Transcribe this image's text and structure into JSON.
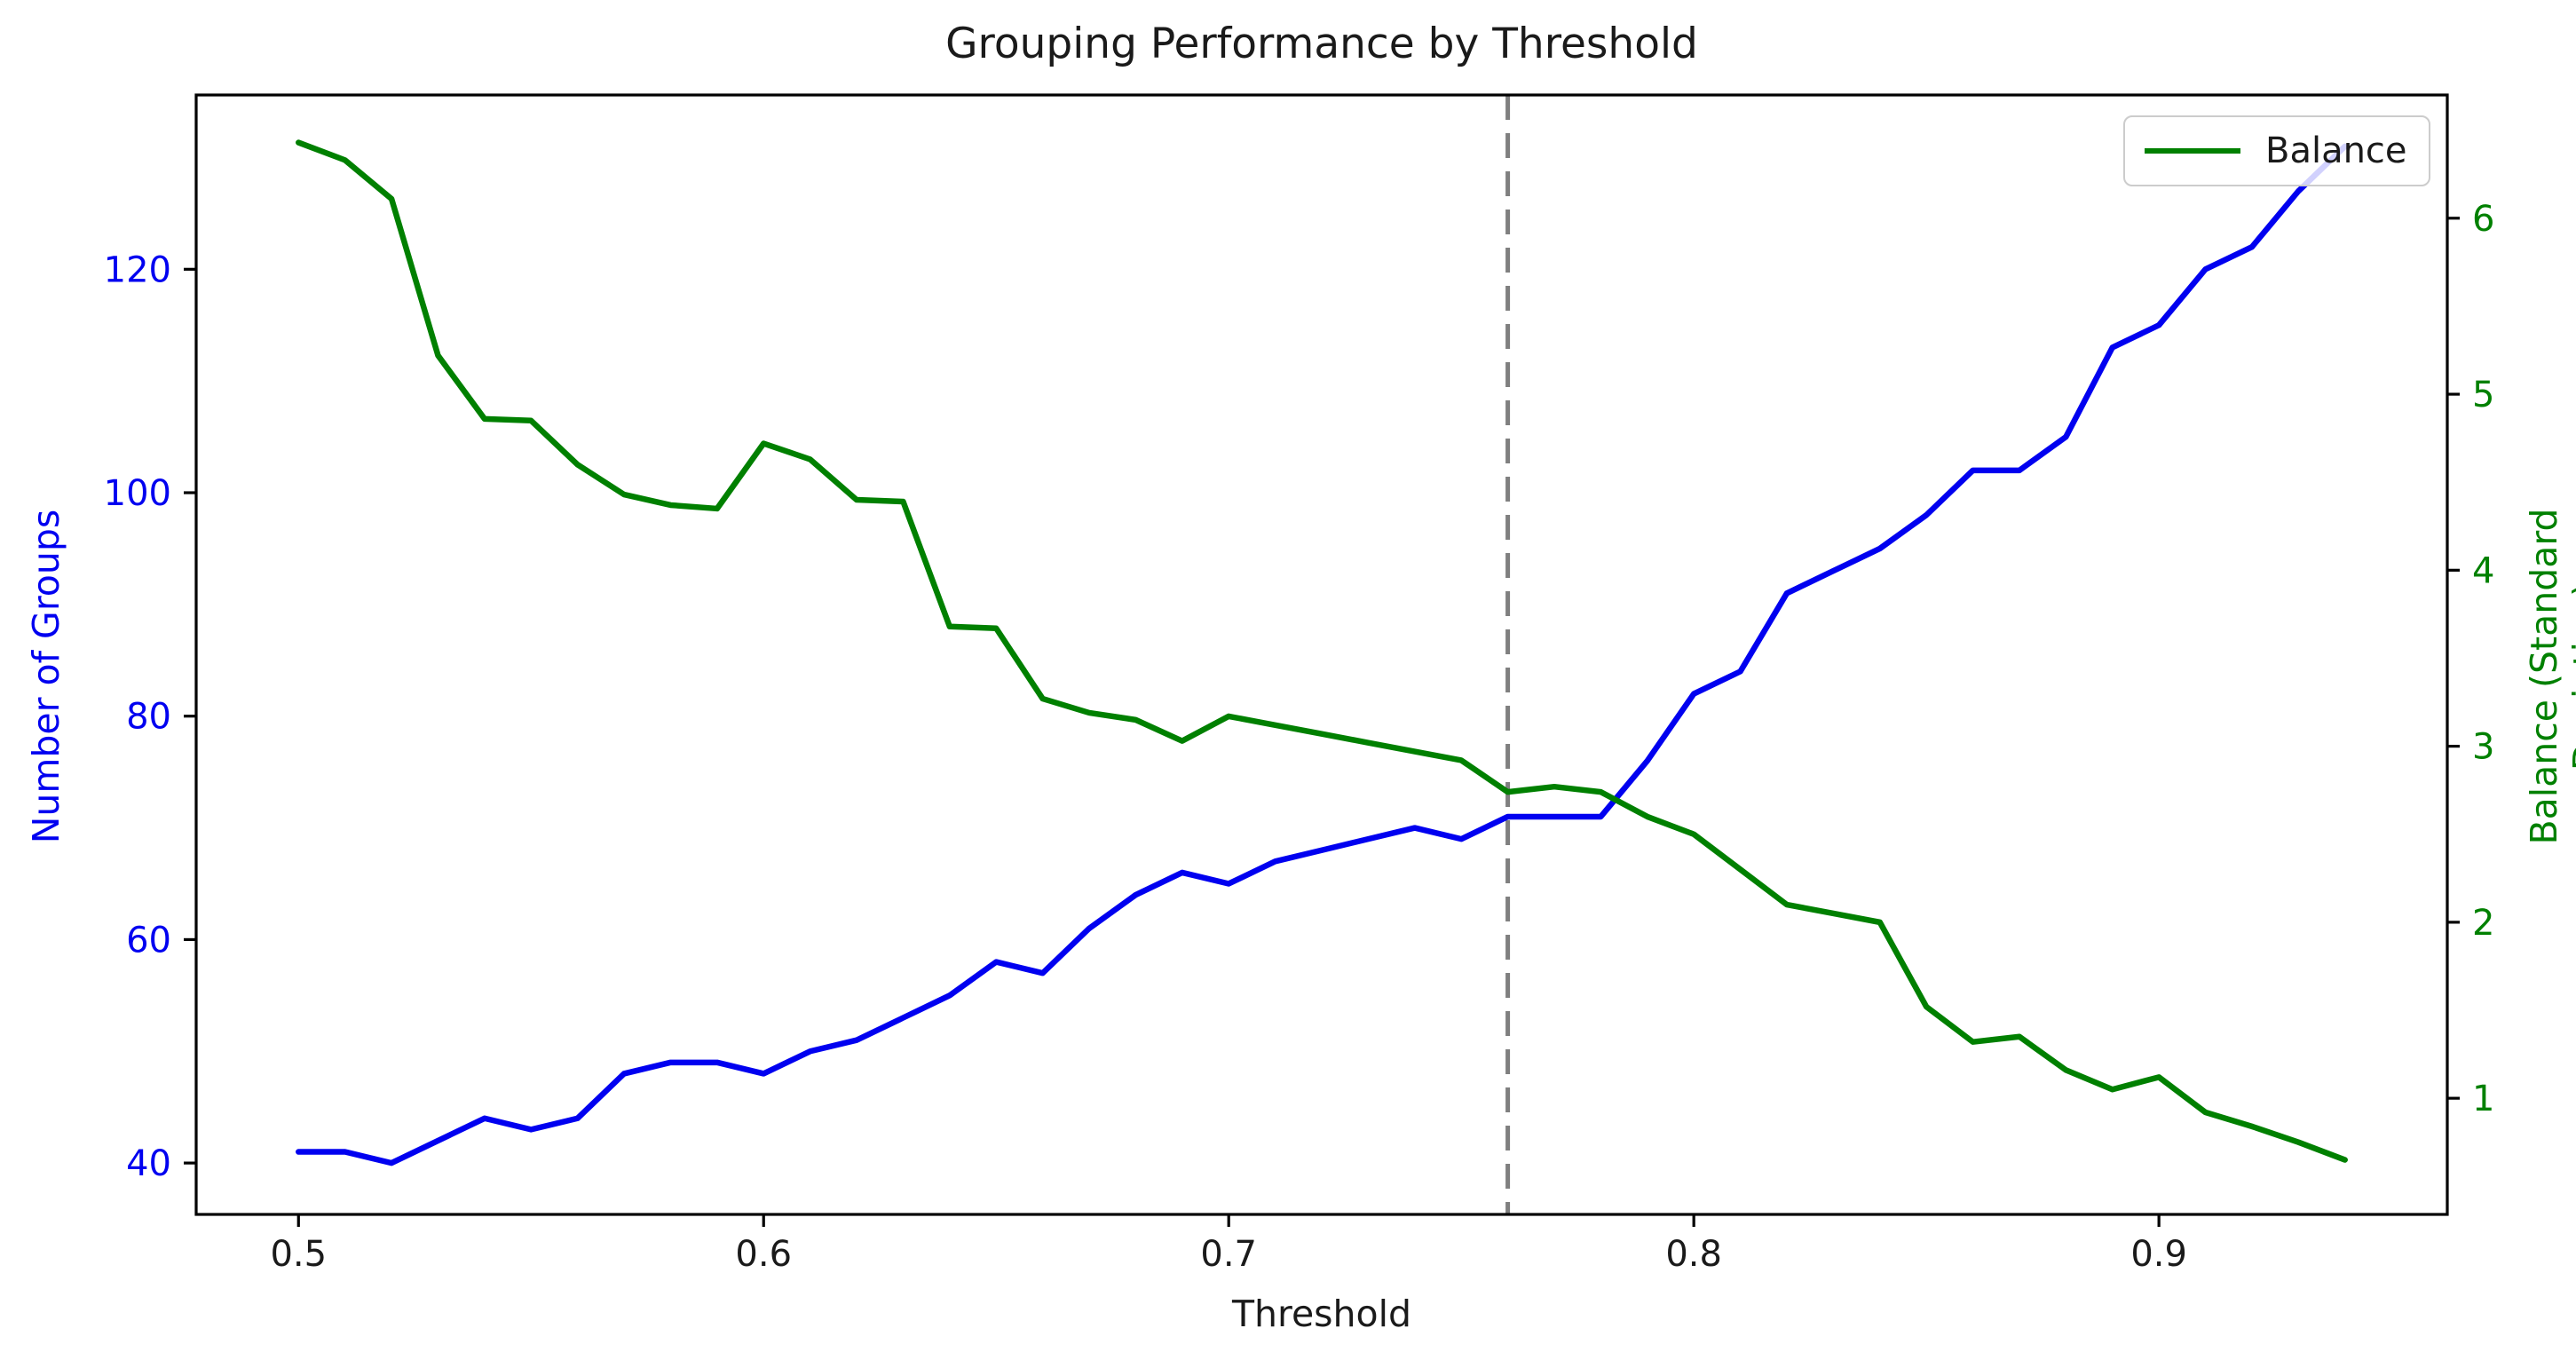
{
  "chart_data": {
    "type": "line",
    "title": "Grouping Performance by Threshold",
    "xlabel": "Threshold",
    "ylabel_left": "Number of Groups",
    "ylabel_right": "Balance (Standard Deviation)",
    "grid": false,
    "legend_position": "upper right",
    "legend_entries": [
      {
        "label": "Balance",
        "color": "#008000"
      }
    ],
    "xlim": [
      0.478,
      0.962
    ],
    "ylim_left": [
      35.4,
      135.6
    ],
    "ylim_right": [
      0.34,
      6.7
    ],
    "x_ticks": [
      0.5,
      0.6,
      0.7,
      0.8,
      0.9
    ],
    "x_tick_labels": [
      "0.5",
      "0.6",
      "0.7",
      "0.8",
      "0.9"
    ],
    "y_ticks_left": [
      40,
      60,
      80,
      100,
      120
    ],
    "y_tick_labels_left": [
      "40",
      "60",
      "80",
      "100",
      "120"
    ],
    "y_ticks_right": [
      1,
      2,
      3,
      4,
      5,
      6
    ],
    "y_tick_labels_right": [
      "1",
      "2",
      "3",
      "4",
      "5",
      "6"
    ],
    "vline": {
      "x": 0.76,
      "color": "#7f7f7f",
      "style": "dashed"
    },
    "x": [
      0.5,
      0.51,
      0.52,
      0.53,
      0.54,
      0.55,
      0.56,
      0.57,
      0.58,
      0.59,
      0.6,
      0.61,
      0.62,
      0.63,
      0.64,
      0.65,
      0.66,
      0.67,
      0.68,
      0.69,
      0.7,
      0.71,
      0.72,
      0.73,
      0.74,
      0.75,
      0.76,
      0.77,
      0.78,
      0.79,
      0.8,
      0.81,
      0.82,
      0.83,
      0.84,
      0.85,
      0.86,
      0.87,
      0.88,
      0.89,
      0.9,
      0.91,
      0.92,
      0.93,
      0.94
    ],
    "series": [
      {
        "name": "Number of Groups",
        "axis": "left",
        "color": "#0000f0",
        "values": [
          41,
          41,
          40,
          42,
          44,
          43,
          44,
          48,
          49,
          49,
          48,
          50,
          51,
          53,
          55,
          58,
          57,
          61,
          64,
          66,
          65,
          67,
          68,
          69,
          70,
          69,
          71,
          71,
          71,
          76,
          82,
          84,
          91,
          93,
          95,
          98,
          102,
          102,
          105,
          113,
          115,
          120,
          122,
          127,
          131
        ]
      },
      {
        "name": "Balance",
        "axis": "right",
        "color": "#008000",
        "values": [
          6.43,
          6.33,
          6.11,
          5.22,
          4.86,
          4.85,
          4.6,
          4.43,
          4.37,
          4.35,
          4.72,
          4.63,
          4.4,
          4.39,
          3.68,
          3.67,
          3.27,
          3.19,
          3.15,
          3.03,
          3.17,
          3.12,
          3.07,
          3.02,
          2.97,
          2.92,
          2.74,
          2.77,
          2.74,
          2.6,
          2.5,
          2.3,
          2.1,
          2.05,
          2.0,
          1.52,
          1.32,
          1.35,
          1.16,
          1.05,
          1.12,
          0.92,
          0.84,
          0.75,
          0.65
        ]
      }
    ],
    "colors": {
      "left_axis_text": "#0000f0",
      "right_axis_text": "#008000",
      "spine": "#000000",
      "tick_text": "#1a1a1a",
      "vline": "#7f7f7f",
      "legend_border": "#cccccc"
    }
  }
}
